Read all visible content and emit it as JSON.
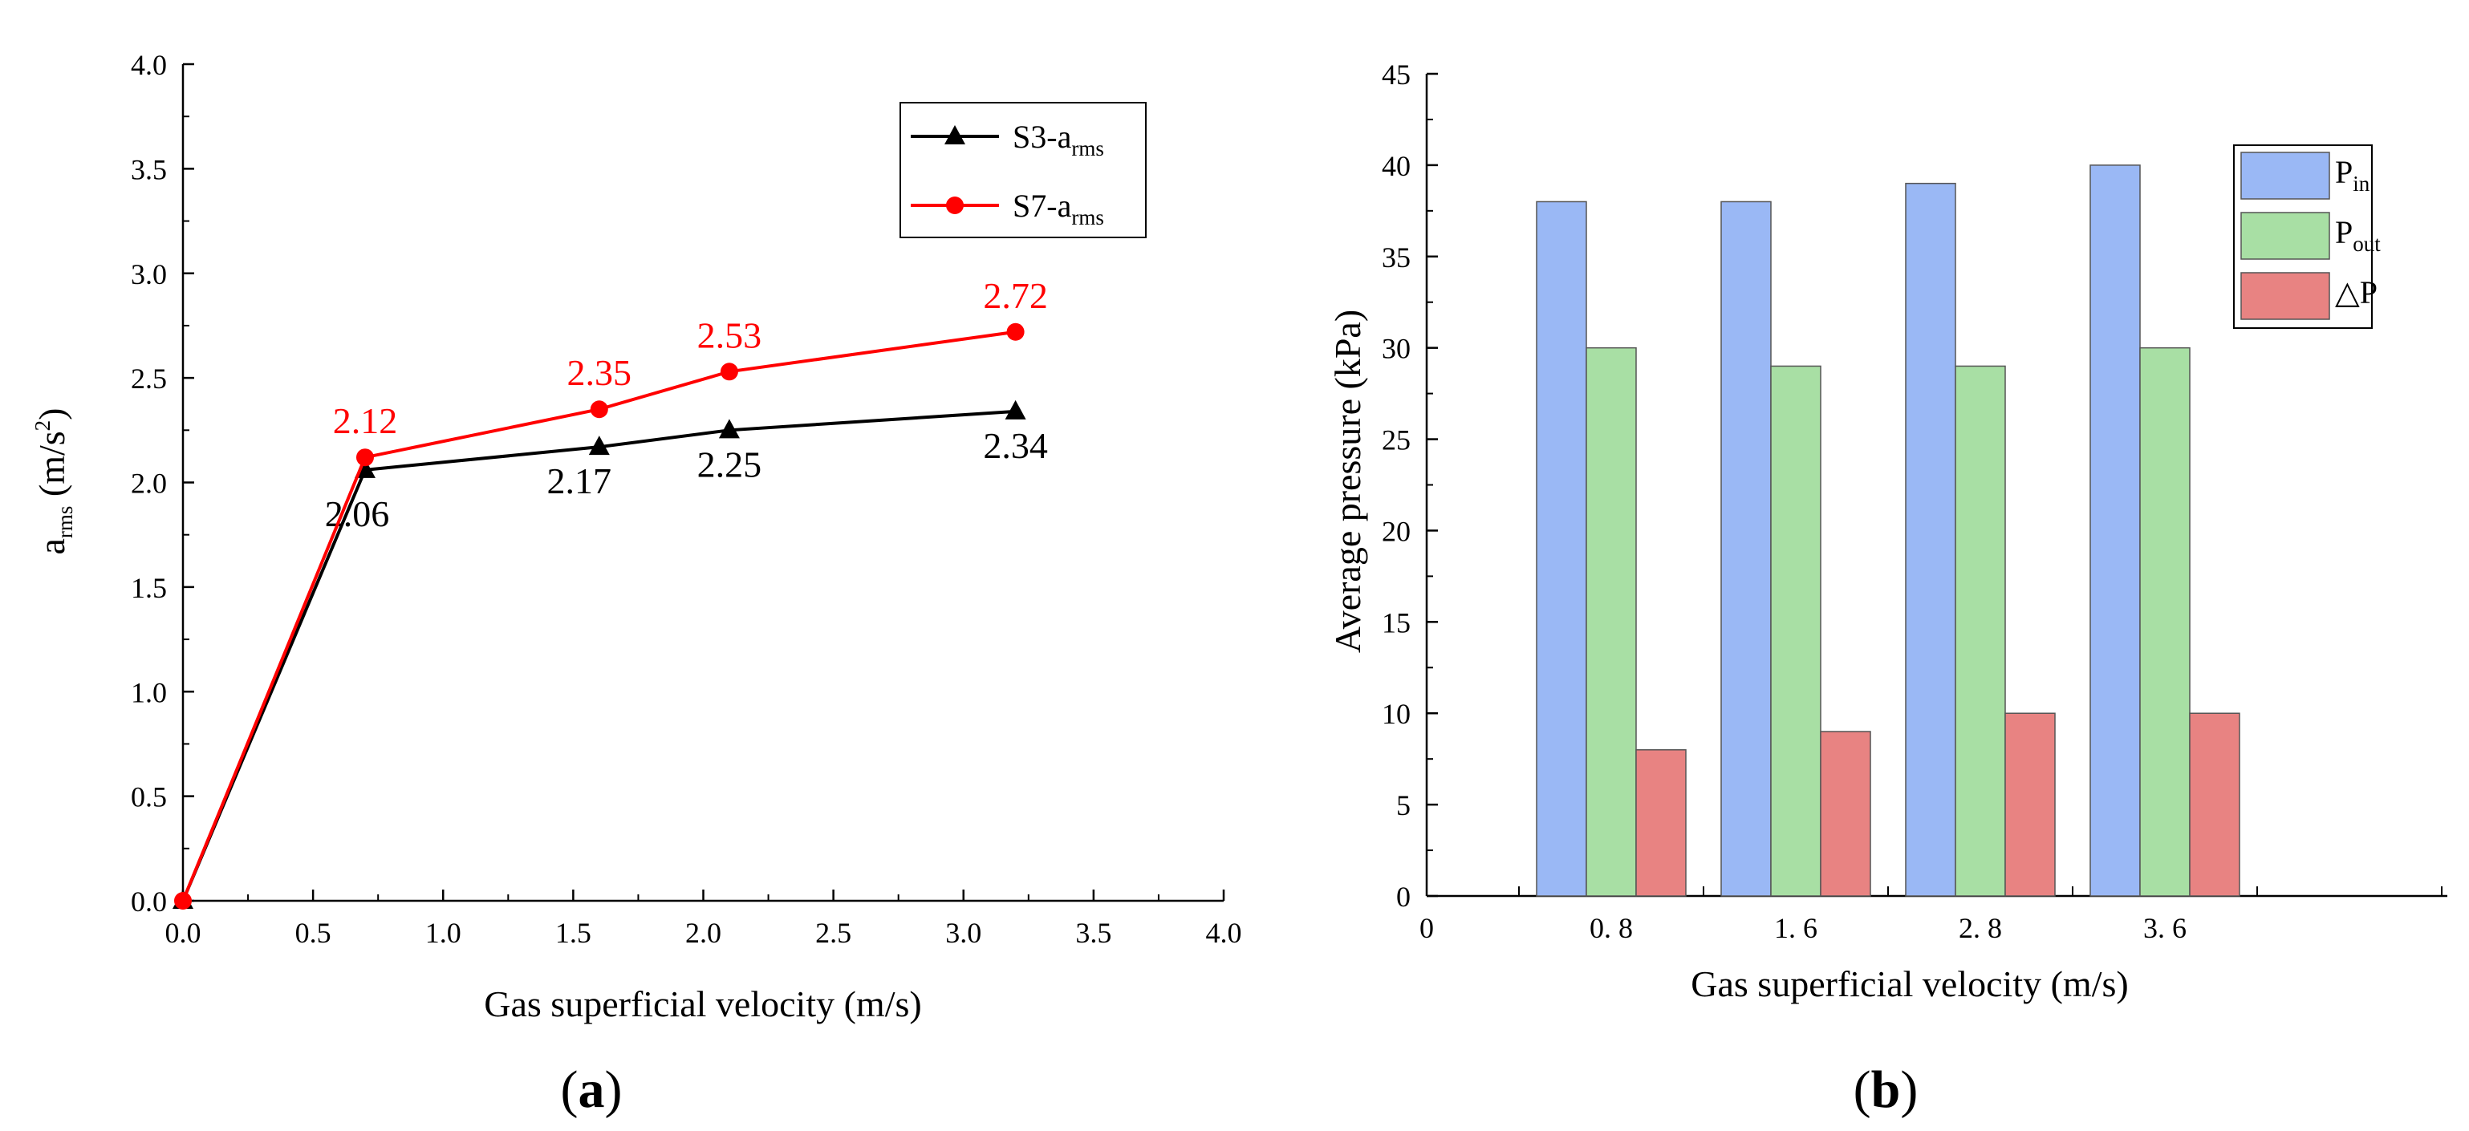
{
  "chart_data": [
    {
      "type": "line",
      "panel_label": "a",
      "xlabel": "Gas superficial velocity (m/s)",
      "ylabel": {
        "base": "a",
        "sub": "rms",
        "rest": " (m/s",
        "sup": "2",
        "close": ")"
      },
      "xlim": [
        0.0,
        4.0
      ],
      "ylim": [
        0.0,
        4.0
      ],
      "xticks": [
        "0.0",
        "0.5",
        "1.0",
        "1.5",
        "2.0",
        "2.5",
        "3.0",
        "3.5",
        "4.0"
      ],
      "yticks": [
        "0.0",
        "0.5",
        "1.0",
        "1.5",
        "2.0",
        "2.5",
        "3.0",
        "3.5",
        "4.0"
      ],
      "grid": false,
      "legend_position": "top-right",
      "series": [
        {
          "name_base": "S3-a",
          "name_sub": "rms",
          "marker": "triangle",
          "color": "#000000",
          "x": [
            0.0,
            0.7,
            1.6,
            2.1,
            3.2
          ],
          "y": [
            0.0,
            2.06,
            2.17,
            2.25,
            2.34
          ],
          "labels": [
            "",
            "2.06",
            "2.17",
            "2.25",
            "2.34"
          ]
        },
        {
          "name_base": "S7-a",
          "name_sub": "rms",
          "marker": "circle",
          "color": "#ff0000",
          "x": [
            0.0,
            0.7,
            1.6,
            2.1,
            3.2
          ],
          "y": [
            0.0,
            2.12,
            2.35,
            2.53,
            2.72
          ],
          "labels": [
            "",
            "2.12",
            "2.35",
            "2.53",
            "2.72"
          ]
        }
      ]
    },
    {
      "type": "bar",
      "panel_label": "b",
      "xlabel": "Gas superficial velocity (m/s)",
      "ylabel": "Average pressure (kPa)",
      "ylim": [
        0,
        45
      ],
      "yticks": [
        "0",
        "5",
        "10",
        "15",
        "20",
        "25",
        "30",
        "35",
        "40",
        "45"
      ],
      "x_origin_label": "0",
      "categories": [
        "0. 8",
        "1. 6",
        "2. 8",
        "3. 6"
      ],
      "grid": false,
      "legend_position": "top-right",
      "series": [
        {
          "name_base": "P",
          "name_sub": "in",
          "color": "#9ab8f5",
          "values": [
            38,
            38,
            39,
            40
          ]
        },
        {
          "name_base": "P",
          "name_sub": "out",
          "color": "#a8dfa4",
          "values": [
            30,
            29,
            29,
            30
          ]
        },
        {
          "name_base": "△P",
          "name_sub": "",
          "color": "#e88382",
          "values": [
            8,
            9,
            10,
            10
          ]
        }
      ]
    }
  ]
}
